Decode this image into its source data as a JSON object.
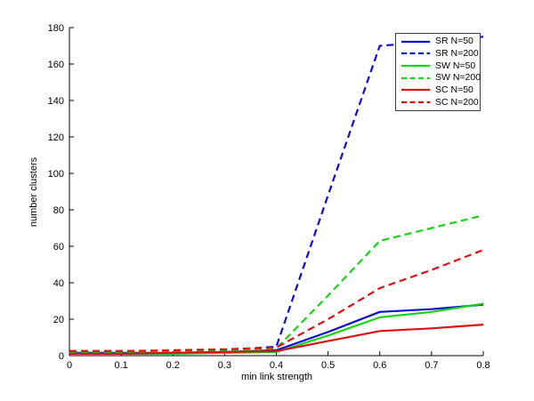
{
  "figure": {
    "background_color": "#ffffff",
    "axis_color": "#000000"
  },
  "chart_data": {
    "type": "line",
    "title": "",
    "xlabel": "min link strength",
    "ylabel": "number clusters",
    "xlim": [
      0,
      0.8
    ],
    "ylim": [
      0,
      180
    ],
    "grid": false,
    "legend_position": "upper-right-inside",
    "xticks": [
      0,
      0.1,
      0.2,
      0.3,
      0.4,
      0.5,
      0.6,
      0.7,
      0.8
    ],
    "xtick_labels": [
      "0",
      "0.1",
      "0.2",
      "0.3",
      "0.4",
      "0.5",
      "0.6",
      "0.7",
      "0.8"
    ],
    "yticks": [
      0,
      20,
      40,
      60,
      80,
      100,
      120,
      140,
      160,
      180
    ],
    "ytick_labels": [
      "0",
      "20",
      "40",
      "60",
      "80",
      "100",
      "120",
      "140",
      "160",
      "180"
    ],
    "x": [
      0,
      0.1,
      0.2,
      0.3,
      0.4,
      0.5,
      0.6,
      0.7,
      0.8
    ],
    "series": [
      {
        "name": "SR N=50",
        "color": "#0d0dd6",
        "style": "solid",
        "values": [
          1.5,
          1.5,
          1.5,
          2,
          3,
          13,
          24,
          25.5,
          28
        ]
      },
      {
        "name": "SR N=200",
        "color": "#0d0dd6",
        "style": "dashed",
        "values": [
          2.5,
          2.5,
          2.5,
          3,
          5,
          88,
          170,
          172,
          175
        ]
      },
      {
        "name": "SW N=50",
        "color": "#17d417",
        "style": "solid",
        "values": [
          1,
          1,
          1,
          1.5,
          2,
          11,
          21,
          24,
          28.5
        ]
      },
      {
        "name": "SW N=200",
        "color": "#17d417",
        "style": "dashed",
        "values": [
          2,
          2,
          2,
          2.5,
          4,
          33,
          63,
          70,
          77
        ]
      },
      {
        "name": "SC N=50",
        "color": "#dd1111",
        "style": "solid",
        "values": [
          1,
          1,
          1.5,
          2,
          2.5,
          8,
          13.5,
          15,
          17
        ]
      },
      {
        "name": "SC N=200",
        "color": "#dd1111",
        "style": "dashed",
        "values": [
          2.5,
          2.5,
          3,
          3.5,
          4.5,
          20,
          37,
          47,
          58
        ]
      }
    ]
  }
}
